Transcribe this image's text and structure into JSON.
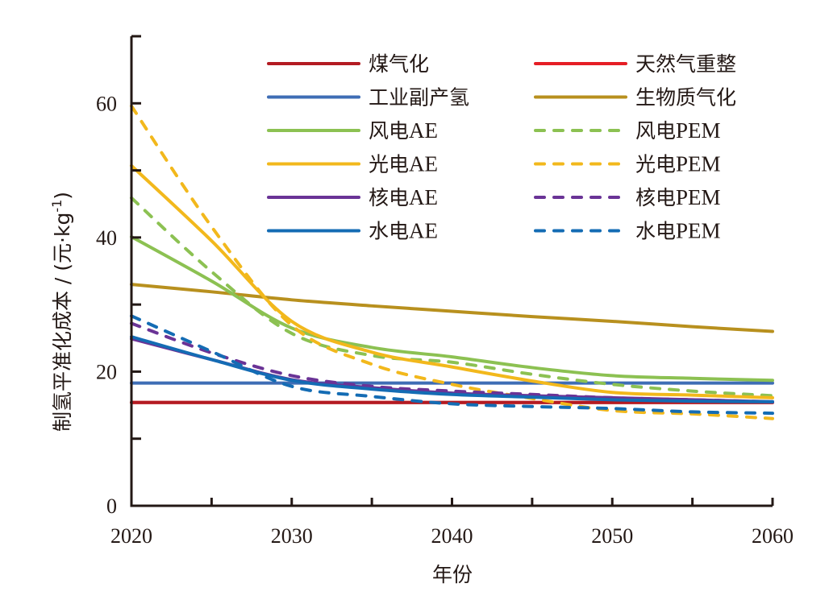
{
  "chart_data": {
    "type": "line",
    "title": "",
    "xlabel": "年份",
    "ylabel": "制氢平准化成本 / (元·kg⁻¹)",
    "ylabel_parts": {
      "main": "制氢平准化成本 / (元·kg",
      "sup": "-1",
      "tail": ")"
    },
    "xlim": [
      2020,
      2060
    ],
    "ylim": [
      0,
      70
    ],
    "x_ticks": [
      2020,
      2030,
      2040,
      2050,
      2060
    ],
    "x_minor_ticks": [
      2025,
      2035,
      2045,
      2055
    ],
    "y_ticks": [
      0,
      20,
      40,
      60
    ],
    "y_minor_ticks": [
      10,
      30,
      50,
      70
    ],
    "x_tick_labels": [
      "2020",
      "2030",
      "2040",
      "2050",
      "2060"
    ],
    "y_tick_labels": [
      "0",
      "20",
      "40",
      "60"
    ],
    "grid": false,
    "legend_position": "top-right",
    "x": [
      2020,
      2025,
      2030,
      2035,
      2040,
      2045,
      2050,
      2055,
      2060
    ],
    "series": [
      {
        "name": "天然气重整",
        "color": "#E51E25",
        "dash": false,
        "values": [
          15.4,
          15.4,
          15.4,
          15.4,
          15.4,
          15.4,
          15.4,
          15.4,
          15.4
        ]
      },
      {
        "name": "煤气化",
        "color": "#B31B22",
        "dash": false,
        "values": [
          15.4,
          15.4,
          15.4,
          15.4,
          15.4,
          15.4,
          15.4,
          15.4,
          15.4
        ]
      },
      {
        "name": "工业副产氢",
        "color": "#3E6DB5",
        "dash": false,
        "values": [
          18.3,
          18.3,
          18.3,
          18.3,
          18.3,
          18.3,
          18.3,
          18.3,
          18.3
        ]
      },
      {
        "name": "生物质气化",
        "color": "#B8901E",
        "dash": false,
        "values": [
          33.0,
          31.9,
          30.7,
          29.8,
          29.0,
          28.2,
          27.5,
          26.7,
          26.0
        ]
      },
      {
        "name": "风电AE",
        "color": "#8CC152",
        "dash": false,
        "values": [
          40.1,
          33.5,
          26.5,
          23.6,
          22.2,
          20.6,
          19.4,
          19.0,
          18.7
        ]
      },
      {
        "name": "风电PEM",
        "color": "#8CC152",
        "dash": true,
        "values": [
          45.9,
          34.9,
          25.7,
          22.4,
          21.4,
          19.6,
          18.1,
          17.1,
          16.4
        ]
      },
      {
        "name": "光电AE",
        "color": "#F2B81C",
        "dash": false,
        "values": [
          50.7,
          39.5,
          27.5,
          22.9,
          20.7,
          18.6,
          16.9,
          16.5,
          16.1
        ]
      },
      {
        "name": "光电PEM",
        "color": "#F2B81C",
        "dash": true,
        "values": [
          59.6,
          41.6,
          26.9,
          21.1,
          18.1,
          16.0,
          14.2,
          13.7,
          13.0
        ]
      },
      {
        "name": "核电AE",
        "color": "#6A3396",
        "dash": false,
        "values": [
          24.9,
          21.8,
          18.8,
          17.6,
          16.8,
          16.4,
          16.1,
          15.8,
          15.5
        ]
      },
      {
        "name": "核电PEM",
        "color": "#6A3396",
        "dash": true,
        "values": [
          27.2,
          22.8,
          19.4,
          17.8,
          17.1,
          16.6,
          16.1,
          15.8,
          15.5
        ]
      },
      {
        "name": "水电AE",
        "color": "#146CB4",
        "dash": false,
        "values": [
          25.2,
          21.8,
          18.7,
          17.4,
          16.6,
          16.2,
          15.8,
          15.6,
          15.5
        ]
      },
      {
        "name": "水电PEM",
        "color": "#146CB4",
        "dash": true,
        "values": [
          28.3,
          23.0,
          17.8,
          16.3,
          15.2,
          14.8,
          14.5,
          14.0,
          13.8
        ]
      }
    ],
    "legend": [
      {
        "label": "煤气化",
        "series": "煤气化"
      },
      {
        "label": "天然气重整",
        "series": "天然气重整"
      },
      {
        "label": "工业副产氢",
        "series": "工业副产氢"
      },
      {
        "label": "生物质气化",
        "series": "生物质气化"
      },
      {
        "label": "风电AE",
        "series": "风电AE"
      },
      {
        "label": "风电PEM",
        "series": "风电PEM"
      },
      {
        "label": "光电AE",
        "series": "光电AE"
      },
      {
        "label": "光电PEM",
        "series": "光电PEM"
      },
      {
        "label": "核电AE",
        "series": "核电AE"
      },
      {
        "label": "核电PEM",
        "series": "核电PEM"
      },
      {
        "label": "水电AE",
        "series": "水电AE"
      },
      {
        "label": "水电PEM",
        "series": "水电PEM"
      }
    ]
  }
}
